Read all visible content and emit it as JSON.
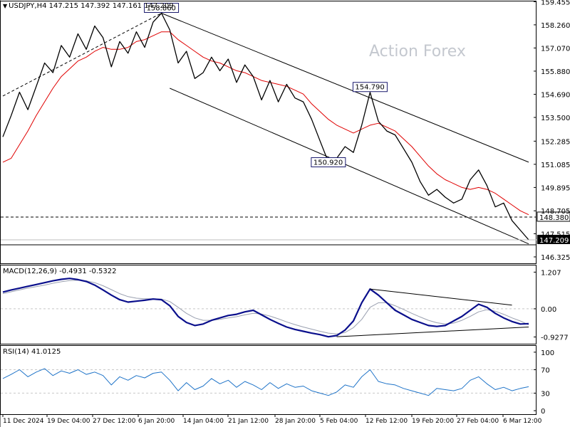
{
  "header": {
    "symbol_line": "USDJPY,H4  147.215 147.392 147.161 147.209"
  },
  "watermark": "Action Forex",
  "colors": {
    "price": "#000000",
    "ma": "#e00000",
    "macd_line": "#0a0f8c",
    "macd_signal": "#9aa0b0",
    "rsi": "#1e73c8",
    "grid": "#c8c8c8",
    "current_price_bg": "#000000",
    "callout_bg": "#ffffff",
    "callout_border": "#1a1a6e"
  },
  "chart_data": [
    {
      "type": "line",
      "panel": "price",
      "title": "USDJPY,H4",
      "ohlc_last": {
        "open": 147.215,
        "high": 147.392,
        "low": 147.161,
        "close": 147.209
      },
      "ylim": [
        146.0,
        159.5
      ],
      "y_ticks": [
        {
          "value": 159.45,
          "label": "159.455"
        },
        {
          "value": 158.26,
          "label": "158.260"
        },
        {
          "value": 157.07,
          "label": "157.070"
        },
        {
          "value": 155.88,
          "label": "155.880"
        },
        {
          "value": 154.69,
          "label": "154.690"
        },
        {
          "value": 153.5,
          "label": "153.500"
        },
        {
          "value": 152.28,
          "label": "152.285"
        },
        {
          "value": 151.09,
          "label": "151.085"
        },
        {
          "value": 149.9,
          "label": "149.895"
        },
        {
          "value": 148.7,
          "label": "148.705"
        },
        {
          "value": 147.52,
          "label": "147.515"
        },
        {
          "value": 146.33,
          "label": "146.325"
        }
      ],
      "series": [
        {
          "name": "USDJPY",
          "values": [
            152.5,
            153.6,
            154.8,
            153.9,
            155.1,
            156.3,
            155.8,
            157.2,
            156.6,
            157.8,
            157.0,
            158.2,
            157.6,
            156.1,
            157.4,
            156.8,
            157.9,
            157.1,
            158.4,
            158.86,
            158.0,
            156.3,
            156.9,
            155.5,
            155.8,
            156.6,
            155.9,
            156.5,
            155.3,
            156.2,
            155.6,
            154.4,
            155.4,
            154.3,
            155.2,
            154.5,
            154.3,
            153.4,
            152.3,
            151.2,
            151.4,
            152.0,
            151.7,
            153.1,
            154.79,
            153.3,
            152.8,
            152.6,
            151.9,
            151.2,
            150.2,
            149.5,
            149.8,
            149.4,
            149.1,
            149.3,
            150.3,
            150.8,
            150.0,
            148.9,
            149.1,
            148.2,
            147.7,
            147.209
          ]
        },
        {
          "name": "MA",
          "values": [
            151.2,
            151.4,
            152.1,
            152.8,
            153.6,
            154.3,
            155.0,
            155.6,
            156.0,
            156.4,
            156.6,
            156.9,
            157.1,
            157.0,
            157.0,
            157.1,
            157.4,
            157.5,
            157.7,
            157.9,
            157.9,
            157.5,
            157.2,
            156.9,
            156.6,
            156.4,
            156.3,
            156.1,
            155.9,
            155.8,
            155.6,
            155.4,
            155.3,
            155.2,
            155.1,
            154.9,
            154.7,
            154.2,
            153.8,
            153.4,
            153.1,
            152.9,
            152.7,
            152.9,
            153.1,
            153.2,
            153.0,
            152.8,
            152.4,
            152.0,
            151.5,
            151.0,
            150.6,
            150.3,
            150.1,
            149.9,
            149.8,
            149.9,
            149.8,
            149.6,
            149.3,
            149.0,
            148.7,
            148.5
          ]
        }
      ],
      "trendlines": [
        {
          "name": "upper-channel",
          "from": {
            "x": 19,
            "y": 158.86
          },
          "to": {
            "x": 63,
            "y": 151.2
          }
        },
        {
          "name": "lower-channel",
          "from": {
            "x": 20,
            "y": 155.0
          },
          "to": {
            "x": 63,
            "y": 147.0
          }
        },
        {
          "name": "early-uptrend",
          "from": {
            "x": 0,
            "y": 154.6
          },
          "to": {
            "x": 19,
            "y": 158.86
          }
        }
      ],
      "levels": [
        {
          "value": 148.38,
          "label": "148.380",
          "style": "dashed"
        },
        {
          "value": 146.95,
          "label": "",
          "style": "solid"
        }
      ],
      "callouts": [
        {
          "x": 19,
          "y": 158.86,
          "label": "158.860"
        },
        {
          "x": 44,
          "y": 154.79,
          "label": "154.790"
        },
        {
          "x": 39,
          "y": 150.92,
          "label": "150.920"
        }
      ],
      "current_price": {
        "value": 147.209,
        "label": "147.209"
      }
    },
    {
      "type": "line",
      "panel": "macd",
      "title": "MACD(12,26,9)",
      "params": "MACD(12,26,9) -0.4931 -0.5322",
      "values_last": {
        "macd": -0.4931,
        "signal": -0.5322
      },
      "ylim": [
        -1.15,
        1.45
      ],
      "y_ticks": [
        {
          "value": 1.207,
          "label": "1.207"
        },
        {
          "value": 0.0,
          "label": "0.00"
        },
        {
          "value": -0.9277,
          "label": "-0.9277"
        }
      ],
      "series": [
        {
          "name": "MACD",
          "values": [
            0.55,
            0.62,
            0.68,
            0.74,
            0.8,
            0.86,
            0.92,
            0.97,
            1.0,
            0.96,
            0.9,
            0.78,
            0.62,
            0.45,
            0.3,
            0.22,
            0.25,
            0.28,
            0.32,
            0.3,
            0.1,
            -0.25,
            -0.45,
            -0.55,
            -0.5,
            -0.38,
            -0.3,
            -0.22,
            -0.18,
            -0.1,
            -0.05,
            -0.2,
            -0.35,
            -0.48,
            -0.6,
            -0.68,
            -0.74,
            -0.8,
            -0.85,
            -0.92,
            -0.88,
            -0.7,
            -0.4,
            0.2,
            0.65,
            0.45,
            0.2,
            -0.05,
            -0.2,
            -0.35,
            -0.45,
            -0.55,
            -0.58,
            -0.55,
            -0.4,
            -0.25,
            -0.05,
            0.15,
            0.05,
            -0.15,
            -0.3,
            -0.42,
            -0.5,
            -0.49
          ]
        },
        {
          "name": "Signal",
          "values": [
            0.5,
            0.56,
            0.62,
            0.68,
            0.73,
            0.78,
            0.84,
            0.89,
            0.93,
            0.94,
            0.92,
            0.86,
            0.76,
            0.63,
            0.5,
            0.4,
            0.35,
            0.33,
            0.33,
            0.32,
            0.24,
            0.05,
            -0.15,
            -0.3,
            -0.38,
            -0.38,
            -0.35,
            -0.3,
            -0.26,
            -0.2,
            -0.15,
            -0.17,
            -0.24,
            -0.33,
            -0.43,
            -0.52,
            -0.6,
            -0.67,
            -0.74,
            -0.8,
            -0.83,
            -0.78,
            -0.62,
            -0.35,
            0.05,
            0.2,
            0.2,
            0.1,
            -0.02,
            -0.15,
            -0.27,
            -0.38,
            -0.46,
            -0.5,
            -0.47,
            -0.38,
            -0.25,
            -0.1,
            -0.03,
            -0.08,
            -0.18,
            -0.3,
            -0.4,
            -0.53
          ]
        }
      ],
      "trendlines": [
        {
          "name": "macd-upper",
          "from": {
            "x": 44,
            "y": 0.65
          },
          "to": {
            "x": 61,
            "y": 0.12
          }
        },
        {
          "name": "macd-lower",
          "from": {
            "x": 40,
            "y": -0.92
          },
          "to": {
            "x": 63,
            "y": -0.6
          }
        }
      ]
    },
    {
      "type": "line",
      "panel": "rsi",
      "title": "RSI(14)",
      "params": "RSI(14) 41.0125",
      "value_last": 41.0125,
      "ylim": [
        0,
        100
      ],
      "y_ticks": [
        {
          "value": 100,
          "label": "100"
        },
        {
          "value": 70,
          "label": "70"
        },
        {
          "value": 30,
          "label": "30"
        },
        {
          "value": 0,
          "label": "0"
        }
      ],
      "series": [
        {
          "name": "RSI",
          "values": [
            55,
            62,
            70,
            58,
            66,
            72,
            60,
            68,
            64,
            70,
            62,
            66,
            60,
            44,
            58,
            52,
            60,
            56,
            64,
            66,
            52,
            34,
            48,
            36,
            42,
            55,
            46,
            52,
            40,
            50,
            44,
            36,
            48,
            38,
            46,
            40,
            42,
            34,
            30,
            26,
            32,
            44,
            40,
            58,
            70,
            50,
            46,
            44,
            38,
            34,
            30,
            26,
            38,
            36,
            34,
            38,
            52,
            58,
            46,
            36,
            40,
            34,
            38,
            41
          ]
        }
      ]
    }
  ],
  "x_axis": {
    "labels": [
      "11 Dec 2024",
      "19 Dec 04:00",
      "27 Dec 12:00",
      "6 Jan 20:00",
      "14 Jan 04:00",
      "21 Jan 12:00",
      "28 Jan 20:00",
      "5 Feb 04:00",
      "12 Feb 12:00",
      "19 Feb 20:00",
      "27 Feb 04:00",
      "6 Mar 12:00"
    ]
  }
}
